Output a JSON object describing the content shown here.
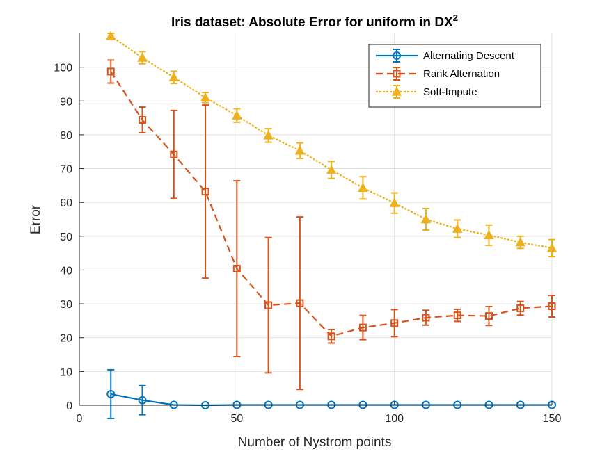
{
  "chart_data": {
    "type": "line",
    "title": "Iris dataset: Absolute Error for uniform in DX",
    "title_superscript": "2",
    "xlabel": "Number of Nystrom points",
    "ylabel": "Error",
    "xlim": [
      0,
      150
    ],
    "ylim": [
      0,
      110
    ],
    "xticks": [
      0,
      50,
      100,
      150
    ],
    "yticks": [
      0,
      10,
      20,
      30,
      40,
      50,
      60,
      70,
      80,
      90,
      100
    ],
    "grid": true,
    "legend_position": "top-right",
    "x": [
      10,
      20,
      30,
      40,
      50,
      60,
      70,
      80,
      90,
      100,
      110,
      120,
      130,
      140,
      150
    ],
    "series": [
      {
        "name": "Alternating Descent",
        "color": "#0072BD",
        "line_style": "solid",
        "marker": "circle",
        "values": [
          3.3,
          1.5,
          0.1,
          0.0,
          0.1,
          0.1,
          0.1,
          0.1,
          0.1,
          0.1,
          0.1,
          0.1,
          0.1,
          0.1,
          0.1
        ],
        "errors": [
          7.2,
          4.3,
          0,
          0,
          0,
          0,
          0,
          0,
          0,
          0,
          0,
          0,
          0,
          0,
          0
        ]
      },
      {
        "name": "Rank Alternation",
        "color": "#D95319",
        "line_style": "dashed",
        "marker": "square",
        "values": [
          98.7,
          84.4,
          74.2,
          63.2,
          40.4,
          29.6,
          30.2,
          20.4,
          23.0,
          24.3,
          25.9,
          26.6,
          26.4,
          28.7,
          29.3
        ],
        "errors": [
          3.4,
          3.8,
          13.0,
          25.6,
          26.0,
          20.0,
          25.5,
          2.0,
          3.6,
          4.0,
          2.2,
          1.8,
          2.8,
          2.0,
          3.2
        ]
      },
      {
        "name": "Soft-Impute",
        "color": "#EDB120",
        "line_style": "dotted",
        "marker": "triangle",
        "values": [
          109.2,
          102.8,
          97.0,
          91.0,
          85.7,
          79.8,
          75.3,
          69.6,
          64.3,
          59.8,
          55.0,
          52.2,
          50.3,
          48.2,
          46.5
        ],
        "errors": [
          0.8,
          1.8,
          1.8,
          1.5,
          2.0,
          2.0,
          2.3,
          2.5,
          3.3,
          3.0,
          3.2,
          2.6,
          3.0,
          1.8,
          2.5
        ]
      }
    ]
  }
}
